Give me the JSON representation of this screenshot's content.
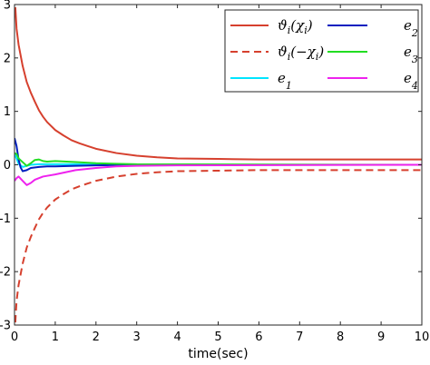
{
  "chart_data": {
    "type": "line",
    "title": "",
    "xlabel": "time(sec)",
    "ylabel": "",
    "xlim": [
      0,
      10
    ],
    "ylim": [
      -3,
      3
    ],
    "x_ticks": [
      0,
      1,
      2,
      3,
      4,
      5,
      6,
      7,
      8,
      9,
      10
    ],
    "y_ticks": [
      3,
      2,
      1,
      0,
      -1,
      -2,
      -3
    ],
    "grid": false,
    "legend_position": "top-right",
    "series": [
      {
        "name": "ϑ_i(χ_i)",
        "color": "#d6402e",
        "style": "solid",
        "points": [
          [
            0.02,
            2.95
          ],
          [
            0.05,
            2.55
          ],
          [
            0.1,
            2.25
          ],
          [
            0.2,
            1.85
          ],
          [
            0.3,
            1.55
          ],
          [
            0.4,
            1.35
          ],
          [
            0.5,
            1.18
          ],
          [
            0.6,
            1.02
          ],
          [
            0.7,
            0.9
          ],
          [
            0.8,
            0.8
          ],
          [
            1.0,
            0.65
          ],
          [
            1.2,
            0.55
          ],
          [
            1.4,
            0.46
          ],
          [
            1.6,
            0.4
          ],
          [
            1.8,
            0.35
          ],
          [
            2.0,
            0.3
          ],
          [
            2.5,
            0.22
          ],
          [
            3.0,
            0.17
          ],
          [
            3.5,
            0.14
          ],
          [
            4.0,
            0.12
          ],
          [
            5.0,
            0.11
          ],
          [
            6.0,
            0.1
          ],
          [
            8.0,
            0.1
          ],
          [
            10.0,
            0.1
          ]
        ]
      },
      {
        "name": "ϑ_i(−χ_i)",
        "color": "#d6402e",
        "style": "dashed",
        "points": [
          [
            0.02,
            -2.95
          ],
          [
            0.05,
            -2.55
          ],
          [
            0.1,
            -2.25
          ],
          [
            0.2,
            -1.85
          ],
          [
            0.3,
            -1.55
          ],
          [
            0.4,
            -1.35
          ],
          [
            0.5,
            -1.18
          ],
          [
            0.6,
            -1.02
          ],
          [
            0.7,
            -0.9
          ],
          [
            0.8,
            -0.8
          ],
          [
            1.0,
            -0.65
          ],
          [
            1.2,
            -0.55
          ],
          [
            1.4,
            -0.46
          ],
          [
            1.6,
            -0.4
          ],
          [
            1.8,
            -0.35
          ],
          [
            2.0,
            -0.3
          ],
          [
            2.5,
            -0.22
          ],
          [
            3.0,
            -0.17
          ],
          [
            3.5,
            -0.14
          ],
          [
            4.0,
            -0.12
          ],
          [
            5.0,
            -0.11
          ],
          [
            6.0,
            -0.1
          ],
          [
            8.0,
            -0.1
          ],
          [
            10.0,
            -0.1
          ]
        ]
      },
      {
        "name": "e_1",
        "color": "#00e5ff",
        "style": "solid",
        "points": [
          [
            0,
            0.2
          ],
          [
            0.05,
            0.12
          ],
          [
            0.1,
            0.02
          ],
          [
            0.2,
            -0.04
          ],
          [
            0.3,
            -0.02
          ],
          [
            0.4,
            0.0
          ],
          [
            0.6,
            0.01
          ],
          [
            0.8,
            0.01
          ],
          [
            1.0,
            0.01
          ],
          [
            1.5,
            0.01
          ],
          [
            2.0,
            0.0
          ],
          [
            3.0,
            0.0
          ],
          [
            10.0,
            0.0
          ]
        ]
      },
      {
        "name": "e_2",
        "color": "#001fbf",
        "style": "solid",
        "points": [
          [
            0,
            0.5
          ],
          [
            0.05,
            0.35
          ],
          [
            0.1,
            0.1
          ],
          [
            0.15,
            -0.05
          ],
          [
            0.2,
            -0.12
          ],
          [
            0.3,
            -0.1
          ],
          [
            0.4,
            -0.06
          ],
          [
            0.6,
            -0.04
          ],
          [
            0.8,
            -0.03
          ],
          [
            1.0,
            -0.03
          ],
          [
            1.5,
            -0.02
          ],
          [
            2.0,
            -0.01
          ],
          [
            3.0,
            0.0
          ],
          [
            10.0,
            0.0
          ]
        ]
      },
      {
        "name": "e_3",
        "color": "#22dd22",
        "style": "solid",
        "points": [
          [
            0,
            0.22
          ],
          [
            0.05,
            0.2
          ],
          [
            0.1,
            0.12
          ],
          [
            0.2,
            0.05
          ],
          [
            0.3,
            -0.02
          ],
          [
            0.4,
            0.03
          ],
          [
            0.5,
            0.09
          ],
          [
            0.6,
            0.1
          ],
          [
            0.7,
            0.07
          ],
          [
            0.8,
            0.06
          ],
          [
            1.0,
            0.07
          ],
          [
            1.5,
            0.05
          ],
          [
            2.0,
            0.03
          ],
          [
            2.5,
            0.02
          ],
          [
            3.0,
            0.01
          ],
          [
            10.0,
            0.0
          ]
        ]
      },
      {
        "name": "e_4",
        "color": "#ee22ee",
        "style": "solid",
        "points": [
          [
            0,
            -0.3
          ],
          [
            0.05,
            -0.25
          ],
          [
            0.1,
            -0.22
          ],
          [
            0.2,
            -0.3
          ],
          [
            0.3,
            -0.38
          ],
          [
            0.4,
            -0.34
          ],
          [
            0.5,
            -0.28
          ],
          [
            0.7,
            -0.22
          ],
          [
            1.0,
            -0.18
          ],
          [
            1.5,
            -0.1
          ],
          [
            2.0,
            -0.06
          ],
          [
            2.5,
            -0.03
          ],
          [
            3.0,
            -0.02
          ],
          [
            4.0,
            -0.01
          ],
          [
            10.0,
            0.0
          ]
        ]
      }
    ],
    "legend": {
      "columns": 2,
      "order": [
        0,
        3,
        1,
        4,
        2,
        5
      ]
    }
  }
}
